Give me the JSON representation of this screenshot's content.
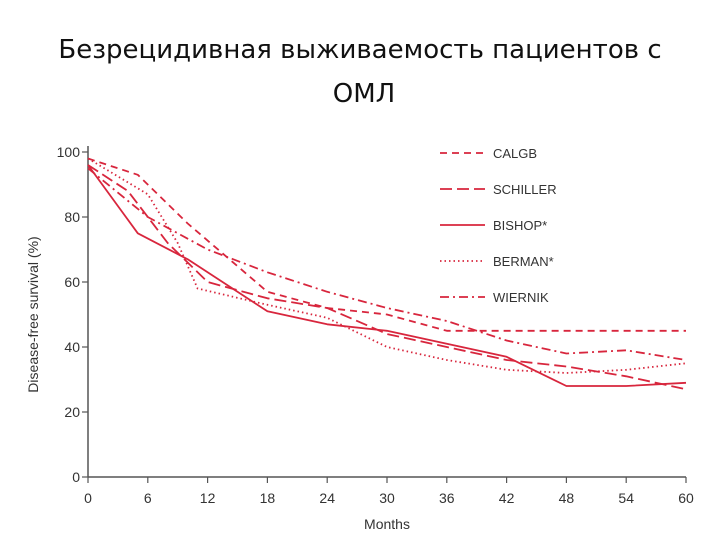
{
  "slide": {
    "title_line1": "Безрецидивная выживаемость пациентов с",
    "title_line2": "ОМЛ"
  },
  "chart_data": {
    "type": "line",
    "xlabel": "Months",
    "ylabel": "Disease-free survival (%)",
    "xlim": [
      0,
      60
    ],
    "ylim": [
      0,
      100
    ],
    "xticks": [
      0,
      6,
      12,
      18,
      24,
      30,
      36,
      42,
      48,
      54,
      60
    ],
    "yticks": [
      0,
      20,
      40,
      60,
      80,
      100
    ],
    "grid": false,
    "legend_position": "top-right",
    "line_color": "#d8263d",
    "series": [
      {
        "name": "CALGB",
        "dash": "dashed",
        "x": [
          0,
          5,
          10,
          18,
          24,
          30,
          36,
          42,
          48,
          54,
          60
        ],
        "y": [
          98,
          93,
          78,
          57,
          52,
          50,
          45,
          45,
          45,
          45,
          45
        ]
      },
      {
        "name": "SCHILLER",
        "dash": "longdash",
        "x": [
          0,
          4,
          8,
          12,
          18,
          24,
          30,
          36,
          42,
          48,
          54,
          60
        ],
        "y": [
          96,
          88,
          72,
          60,
          55,
          52,
          44,
          40,
          36,
          34,
          31,
          27
        ]
      },
      {
        "name": "BISHOP*",
        "dash": "solid",
        "x": [
          0,
          5,
          10,
          18,
          24,
          30,
          36,
          42,
          48,
          54,
          60
        ],
        "y": [
          96,
          75,
          67,
          51,
          47,
          45,
          41,
          37,
          28,
          28,
          29
        ]
      },
      {
        "name": "BERMAN*",
        "dash": "dotted",
        "x": [
          0,
          6,
          9,
          11,
          18,
          24,
          30,
          36,
          42,
          48,
          54,
          60
        ],
        "y": [
          98,
          87,
          72,
          58,
          53,
          49,
          40,
          36,
          33,
          32,
          33,
          35
        ]
      },
      {
        "name": "WIERNIK",
        "dash": "dashdot",
        "x": [
          0,
          6,
          12,
          18,
          24,
          30,
          36,
          42,
          48,
          54,
          60
        ],
        "y": [
          95,
          80,
          70,
          63,
          57,
          52,
          48,
          42,
          38,
          39,
          36
        ]
      }
    ]
  }
}
